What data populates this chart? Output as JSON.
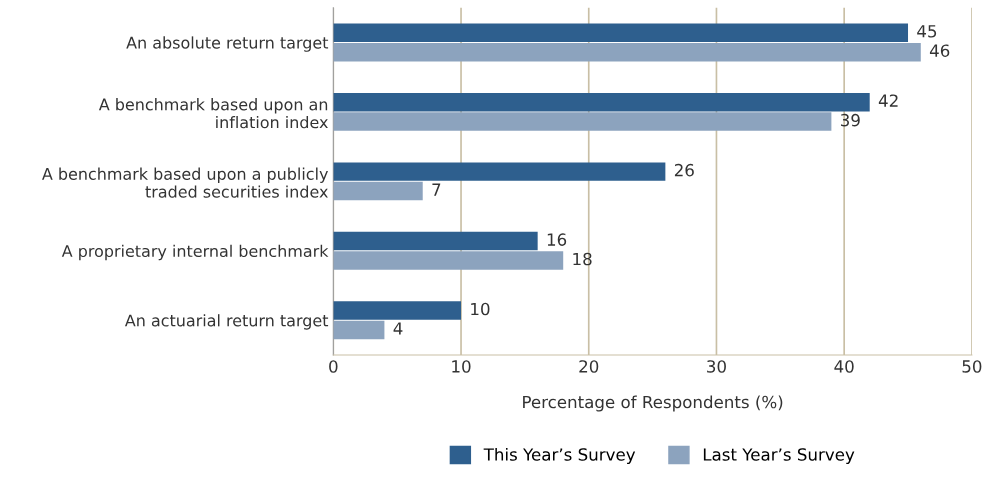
{
  "chart_data": {
    "type": "bar",
    "orientation": "horizontal",
    "categories": [
      "An absolute return target",
      "A benchmark based upon an\ninflation index",
      "A benchmark based upon a publicly\ntraded securities index",
      "A proprietary internal benchmark",
      "An actuarial return target"
    ],
    "series": [
      {
        "name": "This Year’s Survey",
        "color": "#2e5f8e",
        "values": [
          45,
          42,
          26,
          16,
          10
        ]
      },
      {
        "name": "Last Year’s Survey",
        "color": "#8ca3be",
        "values": [
          46,
          39,
          7,
          18,
          4
        ]
      }
    ],
    "xlabel": "Percentage of Respondents (%)",
    "xlim": [
      0,
      50
    ],
    "xticks": [
      0,
      10,
      20,
      30,
      40,
      50
    ],
    "grid": "x",
    "legend": "bottom",
    "data_labels": true
  }
}
